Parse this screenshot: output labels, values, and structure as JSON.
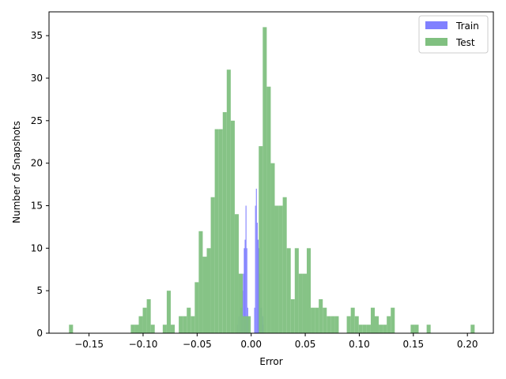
{
  "chart_data": {
    "type": "bar",
    "xlabel": "Error",
    "ylabel": "Number of Snapshots",
    "xlim": [
      -0.187,
      0.224
    ],
    "ylim": [
      0,
      37.8
    ],
    "xticks": [
      -0.15,
      -0.1,
      -0.05,
      0.0,
      0.05,
      0.1,
      0.15,
      0.2
    ],
    "xtick_labels": [
      "−0.15",
      "−0.10",
      "−0.05",
      "0.00",
      "0.05",
      "0.10",
      "0.15",
      "0.20"
    ],
    "yticks": [
      0,
      5,
      10,
      15,
      20,
      25,
      30,
      35
    ],
    "ytick_labels": [
      "0",
      "5",
      "10",
      "15",
      "20",
      "25",
      "30",
      "35"
    ],
    "legend_position": "top-right",
    "grid": false,
    "series": [
      {
        "name": "Train",
        "color": "#8080ff",
        "bin_width": 0.0008,
        "bins": [
          [
            -0.0132,
            1
          ],
          [
            -0.0116,
            2
          ],
          [
            -0.01,
            3
          ],
          [
            -0.0092,
            3
          ],
          [
            -0.0084,
            5
          ],
          [
            -0.0076,
            7
          ],
          [
            -0.0068,
            10
          ],
          [
            -0.006,
            11
          ],
          [
            -0.0052,
            15
          ],
          [
            -0.0044,
            10
          ],
          [
            -0.0036,
            3
          ],
          [
            -0.0028,
            2
          ],
          [
            0.0028,
            3
          ],
          [
            0.0036,
            15
          ],
          [
            0.0044,
            17
          ],
          [
            0.0052,
            13
          ],
          [
            0.006,
            11
          ],
          [
            0.0068,
            10
          ],
          [
            0.0076,
            7
          ],
          [
            0.0084,
            3
          ],
          [
            0.0092,
            3
          ],
          [
            0.01,
            2
          ],
          [
            0.0108,
            1
          ]
        ]
      },
      {
        "name": "Test",
        "color": "#80c080",
        "bin_width": 0.0037,
        "bins": [
          [
            -0.1685,
            1
          ],
          [
            -0.1114,
            1
          ],
          [
            -0.1077,
            1
          ],
          [
            -0.104,
            2
          ],
          [
            -0.1003,
            3
          ],
          [
            -0.0966,
            4
          ],
          [
            -0.0929,
            1
          ],
          [
            -0.0818,
            1
          ],
          [
            -0.0781,
            5
          ],
          [
            -0.0744,
            1
          ],
          [
            -0.067,
            2
          ],
          [
            -0.0633,
            2
          ],
          [
            -0.0596,
            3
          ],
          [
            -0.0559,
            2
          ],
          [
            -0.0522,
            6
          ],
          [
            -0.0485,
            12
          ],
          [
            -0.0448,
            9
          ],
          [
            -0.0411,
            10
          ],
          [
            -0.0374,
            16
          ],
          [
            -0.0337,
            24
          ],
          [
            -0.03,
            24
          ],
          [
            -0.0263,
            26
          ],
          [
            -0.0226,
            31
          ],
          [
            -0.0189,
            25
          ],
          [
            -0.0152,
            14
          ],
          [
            -0.0115,
            7
          ],
          [
            -0.0078,
            2
          ],
          [
            -0.0041,
            2
          ],
          [
            0.007,
            22
          ],
          [
            0.0107,
            36
          ],
          [
            0.0144,
            29
          ],
          [
            0.0181,
            20
          ],
          [
            0.0218,
            15
          ],
          [
            0.0255,
            15
          ],
          [
            0.0292,
            16
          ],
          [
            0.0329,
            10
          ],
          [
            0.0366,
            4
          ],
          [
            0.0403,
            10
          ],
          [
            0.044,
            7
          ],
          [
            0.0477,
            7
          ],
          [
            0.0514,
            10
          ],
          [
            0.0551,
            3
          ],
          [
            0.0588,
            3
          ],
          [
            0.0625,
            4
          ],
          [
            0.0662,
            3
          ],
          [
            0.0699,
            2
          ],
          [
            0.0736,
            2
          ],
          [
            0.0773,
            2
          ],
          [
            0.0884,
            2
          ],
          [
            0.0921,
            3
          ],
          [
            0.0958,
            2
          ],
          [
            0.0995,
            1
          ],
          [
            0.1032,
            1
          ],
          [
            0.1069,
            1
          ],
          [
            0.1106,
            3
          ],
          [
            0.1143,
            2
          ],
          [
            0.118,
            1
          ],
          [
            0.1217,
            1
          ],
          [
            0.1254,
            2
          ],
          [
            0.1291,
            3
          ],
          [
            0.1475,
            1
          ],
          [
            0.1512,
            1
          ],
          [
            0.1623,
            1
          ],
          [
            0.203,
            1
          ]
        ]
      }
    ]
  }
}
